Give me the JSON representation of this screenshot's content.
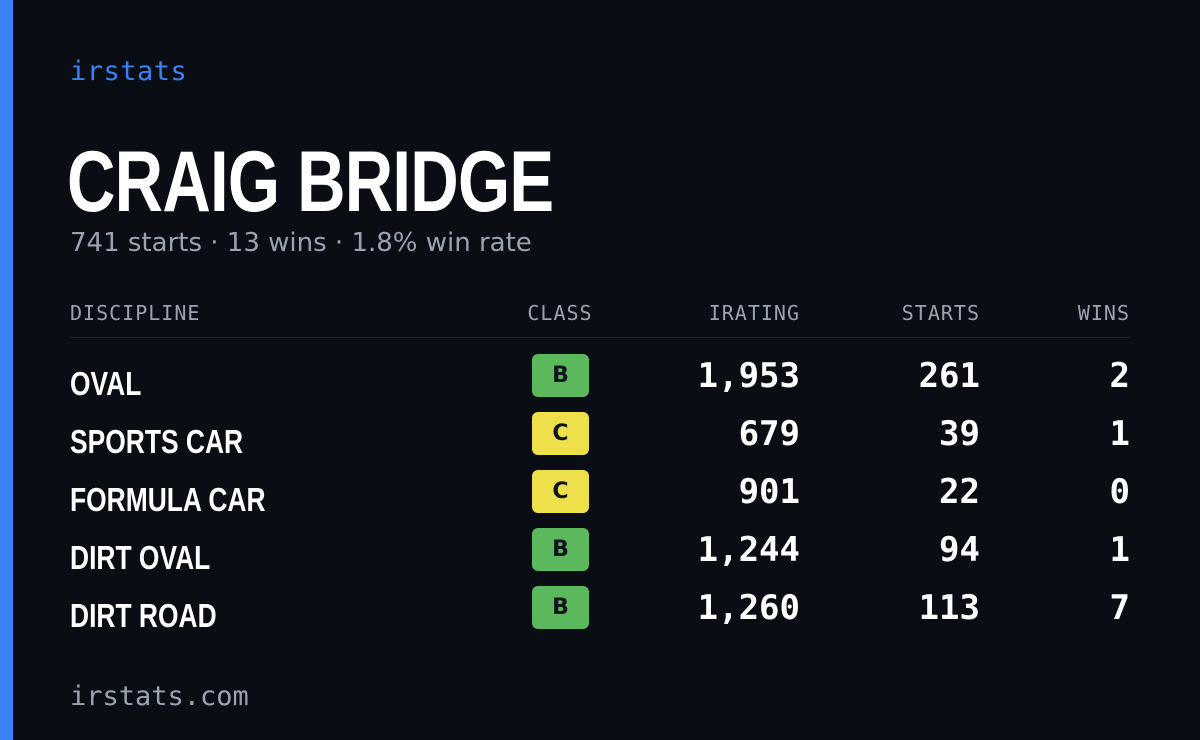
{
  "brand": "irstats",
  "driver": {
    "name": "CRAIG BRIDGE",
    "summary": "741 starts · 13 wins · 1.8% win rate"
  },
  "table": {
    "headers": {
      "discipline": "DISCIPLINE",
      "class": "CLASS",
      "irating": "IRATING",
      "starts": "STARTS",
      "wins": "WINS"
    },
    "rows": [
      {
        "discipline": "OVAL",
        "class": "B",
        "irating": "1,953",
        "starts": "261",
        "wins": "2"
      },
      {
        "discipline": "SPORTS CAR",
        "class": "C",
        "irating": "679",
        "starts": "39",
        "wins": "1"
      },
      {
        "discipline": "FORMULA CAR",
        "class": "C",
        "irating": "901",
        "starts": "22",
        "wins": "0"
      },
      {
        "discipline": "DIRT OVAL",
        "class": "B",
        "irating": "1,244",
        "starts": "94",
        "wins": "1"
      },
      {
        "discipline": "DIRT ROAD",
        "class": "B",
        "irating": "1,260",
        "starts": "113",
        "wins": "7"
      }
    ]
  },
  "footer": "irstats.com",
  "colors": {
    "accent": "#3b82f6",
    "background": "#0a0d14",
    "class_b": "#5cb85c",
    "class_c": "#ede04a"
  }
}
